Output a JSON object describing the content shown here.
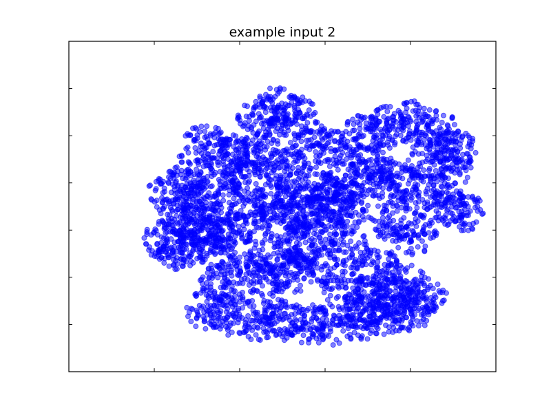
{
  "chart_data": {
    "type": "scatter",
    "title": "example input 2",
    "xlabel": "",
    "ylabel": "",
    "xlim": [
      0,
      10
    ],
    "ylim": [
      0,
      7
    ],
    "x_ticks": [
      2,
      4,
      6,
      8
    ],
    "y_ticks": [
      1,
      2,
      3,
      4,
      5,
      6
    ],
    "grid": false,
    "legend": "none",
    "marker": "circle",
    "color": "#0000ff",
    "alpha": 0.5,
    "series": [
      {
        "points": [
          [
            2.3,
            2.8
          ],
          [
            2.6,
            2.6
          ],
          [
            3.0,
            2.7
          ],
          [
            3.4,
            2.9
          ],
          [
            3.8,
            3.0
          ],
          [
            4.2,
            3.3
          ],
          [
            4.8,
            3.6
          ],
          [
            5.3,
            3.8
          ],
          [
            5.8,
            3.9
          ],
          [
            6.4,
            4.0
          ],
          [
            7.0,
            4.1
          ],
          [
            7.6,
            4.0
          ],
          [
            8.2,
            3.8
          ],
          [
            8.8,
            3.5
          ],
          [
            9.2,
            3.4
          ],
          [
            3.7,
            4.6
          ],
          [
            4.0,
            4.5
          ],
          [
            4.5,
            5.4
          ],
          [
            4.9,
            5.6
          ],
          [
            5.3,
            5.4
          ],
          [
            5.7,
            4.8
          ],
          [
            6.3,
            4.7
          ],
          [
            6.9,
            5.0
          ],
          [
            7.5,
            5.2
          ],
          [
            8.0,
            5.3
          ],
          [
            8.6,
            5.1
          ],
          [
            9.0,
            4.7
          ],
          [
            8.9,
            4.3
          ],
          [
            8.4,
            4.5
          ],
          [
            7.2,
            4.4
          ],
          [
            6.5,
            3.4
          ],
          [
            6.0,
            3.0
          ],
          [
            6.6,
            2.6
          ],
          [
            7.2,
            2.2
          ],
          [
            7.8,
            1.9
          ],
          [
            8.3,
            1.6
          ],
          [
            8.0,
            1.3
          ],
          [
            7.4,
            1.2
          ],
          [
            6.8,
            1.1
          ],
          [
            6.2,
            1.0
          ],
          [
            5.6,
            1.0
          ],
          [
            5.0,
            1.1
          ],
          [
            4.4,
            1.1
          ],
          [
            3.8,
            1.2
          ],
          [
            3.3,
            1.3
          ],
          [
            3.6,
            1.9
          ],
          [
            4.0,
            2.2
          ],
          [
            4.6,
            2.0
          ],
          [
            5.2,
            2.1
          ],
          [
            5.8,
            2.3
          ],
          [
            6.4,
            1.8
          ],
          [
            7.0,
            1.6
          ],
          [
            7.6,
            1.5
          ],
          [
            4.8,
            2.5
          ],
          [
            5.4,
            2.7
          ],
          [
            3.0,
            3.6
          ],
          [
            3.5,
            3.8
          ],
          [
            4.2,
            4.0
          ],
          [
            2.4,
            3.8
          ],
          [
            2.8,
            4.2
          ],
          [
            3.2,
            4.8
          ],
          [
            4.6,
            4.7
          ],
          [
            5.1,
            4.3
          ],
          [
            2.7,
            3.3
          ],
          [
            3.1,
            3.1
          ],
          [
            8.1,
            2.9
          ],
          [
            7.6,
            3.2
          ],
          [
            5.0,
            3.2
          ],
          [
            5.5,
            3.3
          ],
          [
            6.2,
            3.6
          ]
        ]
      }
    ]
  }
}
